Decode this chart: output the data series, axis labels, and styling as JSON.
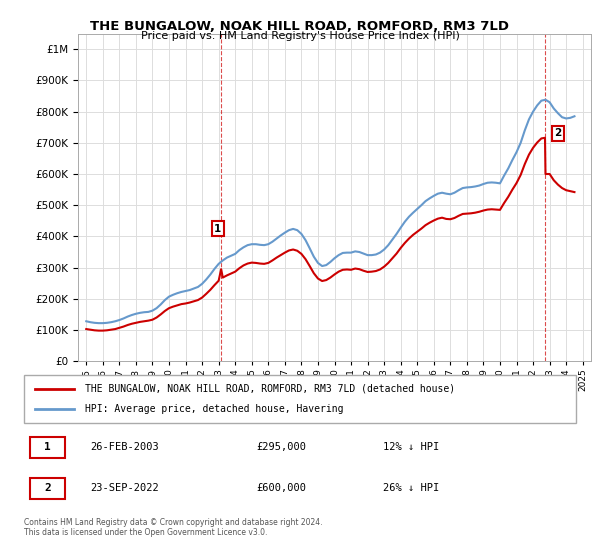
{
  "title": "THE BUNGALOW, NOAK HILL ROAD, ROMFORD, RM3 7LD",
  "subtitle": "Price paid vs. HM Land Registry's House Price Index (HPI)",
  "legend_line1": "THE BUNGALOW, NOAK HILL ROAD, ROMFORD, RM3 7LD (detached house)",
  "legend_line2": "HPI: Average price, detached house, Havering",
  "footer1": "Contains HM Land Registry data © Crown copyright and database right 2024.",
  "footer2": "This data is licensed under the Open Government Licence v3.0.",
  "table_row1": [
    "1",
    "26-FEB-2003",
    "£295,000",
    "12% ↓ HPI"
  ],
  "table_row2": [
    "2",
    "23-SEP-2022",
    "£600,000",
    "26% ↓ HPI"
  ],
  "red_color": "#cc0000",
  "blue_color": "#6699cc",
  "marker1_x": 2003.15,
  "marker1_y": 295000,
  "marker2_x": 2022.72,
  "marker2_y": 600000,
  "ylim": [
    0,
    1050000
  ],
  "xlim": [
    1994.5,
    2025.5
  ],
  "background_color": "#ffffff",
  "grid_color": "#dddddd",
  "hpi_data": {
    "years": [
      1995.0,
      1995.25,
      1995.5,
      1995.75,
      1996.0,
      1996.25,
      1996.5,
      1996.75,
      1997.0,
      1997.25,
      1997.5,
      1997.75,
      1998.0,
      1998.25,
      1998.5,
      1998.75,
      1999.0,
      1999.25,
      1999.5,
      1999.75,
      2000.0,
      2000.25,
      2000.5,
      2000.75,
      2001.0,
      2001.25,
      2001.5,
      2001.75,
      2002.0,
      2002.25,
      2002.5,
      2002.75,
      2003.0,
      2003.25,
      2003.5,
      2003.75,
      2004.0,
      2004.25,
      2004.5,
      2004.75,
      2005.0,
      2005.25,
      2005.5,
      2005.75,
      2006.0,
      2006.25,
      2006.5,
      2006.75,
      2007.0,
      2007.25,
      2007.5,
      2007.75,
      2008.0,
      2008.25,
      2008.5,
      2008.75,
      2009.0,
      2009.25,
      2009.5,
      2009.75,
      2010.0,
      2010.25,
      2010.5,
      2010.75,
      2011.0,
      2011.25,
      2011.5,
      2011.75,
      2012.0,
      2012.25,
      2012.5,
      2012.75,
      2013.0,
      2013.25,
      2013.5,
      2013.75,
      2014.0,
      2014.25,
      2014.5,
      2014.75,
      2015.0,
      2015.25,
      2015.5,
      2015.75,
      2016.0,
      2016.25,
      2016.5,
      2016.75,
      2017.0,
      2017.25,
      2017.5,
      2017.75,
      2018.0,
      2018.25,
      2018.5,
      2018.75,
      2019.0,
      2019.25,
      2019.5,
      2019.75,
      2020.0,
      2020.25,
      2020.5,
      2020.75,
      2021.0,
      2021.25,
      2021.5,
      2021.75,
      2022.0,
      2022.25,
      2022.5,
      2022.75,
      2023.0,
      2023.25,
      2023.5,
      2023.75,
      2024.0,
      2024.25,
      2024.5
    ],
    "values": [
      128000,
      125000,
      123000,
      122000,
      122000,
      123000,
      125000,
      128000,
      132000,
      137000,
      143000,
      148000,
      152000,
      155000,
      157000,
      158000,
      162000,
      170000,
      182000,
      196000,
      207000,
      213000,
      218000,
      222000,
      225000,
      228000,
      233000,
      238000,
      248000,
      262000,
      278000,
      296000,
      312000,
      323000,
      332000,
      338000,
      344000,
      356000,
      365000,
      372000,
      375000,
      375000,
      373000,
      372000,
      375000,
      383000,
      393000,
      403000,
      412000,
      420000,
      424000,
      420000,
      408000,
      388000,
      362000,
      335000,
      315000,
      305000,
      308000,
      318000,
      330000,
      340000,
      347000,
      348000,
      348000,
      352000,
      350000,
      345000,
      340000,
      340000,
      342000,
      348000,
      358000,
      372000,
      390000,
      408000,
      428000,
      447000,
      463000,
      476000,
      488000,
      500000,
      513000,
      522000,
      530000,
      537000,
      540000,
      537000,
      535000,
      540000,
      548000,
      555000,
      557000,
      558000,
      560000,
      563000,
      568000,
      572000,
      573000,
      572000,
      570000,
      595000,
      618000,
      645000,
      670000,
      700000,
      740000,
      775000,
      800000,
      820000,
      835000,
      838000,
      830000,
      810000,
      795000,
      782000,
      778000,
      780000,
      785000
    ]
  },
  "red_data": {
    "years": [
      1995.0,
      1995.25,
      1995.5,
      1995.75,
      1996.0,
      1996.25,
      1996.5,
      1996.75,
      1997.0,
      1997.25,
      1997.5,
      1997.75,
      1998.0,
      1998.25,
      1998.5,
      1998.75,
      1999.0,
      1999.25,
      1999.5,
      1999.75,
      2000.0,
      2000.25,
      2000.5,
      2000.75,
      2001.0,
      2001.25,
      2001.5,
      2001.75,
      2002.0,
      2002.25,
      2002.5,
      2002.75,
      2003.0,
      2003.15,
      2003.25,
      2003.5,
      2003.75,
      2004.0,
      2004.25,
      2004.5,
      2004.75,
      2005.0,
      2005.25,
      2005.5,
      2005.75,
      2006.0,
      2006.25,
      2006.5,
      2006.75,
      2007.0,
      2007.25,
      2007.5,
      2007.75,
      2008.0,
      2008.25,
      2008.5,
      2008.75,
      2009.0,
      2009.25,
      2009.5,
      2009.75,
      2010.0,
      2010.25,
      2010.5,
      2010.75,
      2011.0,
      2011.25,
      2011.5,
      2011.75,
      2012.0,
      2012.25,
      2012.5,
      2012.75,
      2013.0,
      2013.25,
      2013.5,
      2013.75,
      2014.0,
      2014.25,
      2014.5,
      2014.75,
      2015.0,
      2015.25,
      2015.5,
      2015.75,
      2016.0,
      2016.25,
      2016.5,
      2016.75,
      2017.0,
      2017.25,
      2017.5,
      2017.75,
      2018.0,
      2018.25,
      2018.5,
      2018.75,
      2019.0,
      2019.25,
      2019.5,
      2019.75,
      2020.0,
      2020.25,
      2020.5,
      2020.75,
      2021.0,
      2021.25,
      2021.5,
      2021.75,
      2022.0,
      2022.25,
      2022.5,
      2022.72,
      2022.75,
      2023.0,
      2023.25,
      2023.5,
      2023.75,
      2024.0,
      2024.25,
      2024.5
    ],
    "values": [
      103000,
      101000,
      99000,
      98000,
      98000,
      99000,
      101000,
      103000,
      107000,
      111000,
      116000,
      120000,
      123000,
      126000,
      128000,
      130000,
      133000,
      140000,
      150000,
      161000,
      170000,
      175000,
      179000,
      183000,
      185000,
      188000,
      192000,
      196000,
      204000,
      216000,
      229000,
      244000,
      258000,
      295000,
      268000,
      275000,
      281000,
      287000,
      298000,
      307000,
      313000,
      316000,
      315000,
      313000,
      312000,
      315000,
      323000,
      332000,
      340000,
      348000,
      355000,
      358000,
      354000,
      344000,
      327000,
      305000,
      282000,
      265000,
      257000,
      260000,
      268000,
      278000,
      287000,
      293000,
      294000,
      293000,
      297000,
      295000,
      290000,
      286000,
      287000,
      289000,
      294000,
      303000,
      315000,
      330000,
      345000,
      363000,
      379000,
      393000,
      405000,
      415000,
      425000,
      436000,
      444000,
      451000,
      457000,
      460000,
      456000,
      455000,
      459000,
      466000,
      472000,
      473000,
      474000,
      476000,
      479000,
      483000,
      486000,
      487000,
      486000,
      485000,
      507000,
      527000,
      550000,
      571000,
      597000,
      632000,
      662000,
      684000,
      701000,
      714000,
      716000,
      600000,
      600000,
      580000,
      566000,
      555000,
      548000,
      545000,
      542000
    ]
  }
}
